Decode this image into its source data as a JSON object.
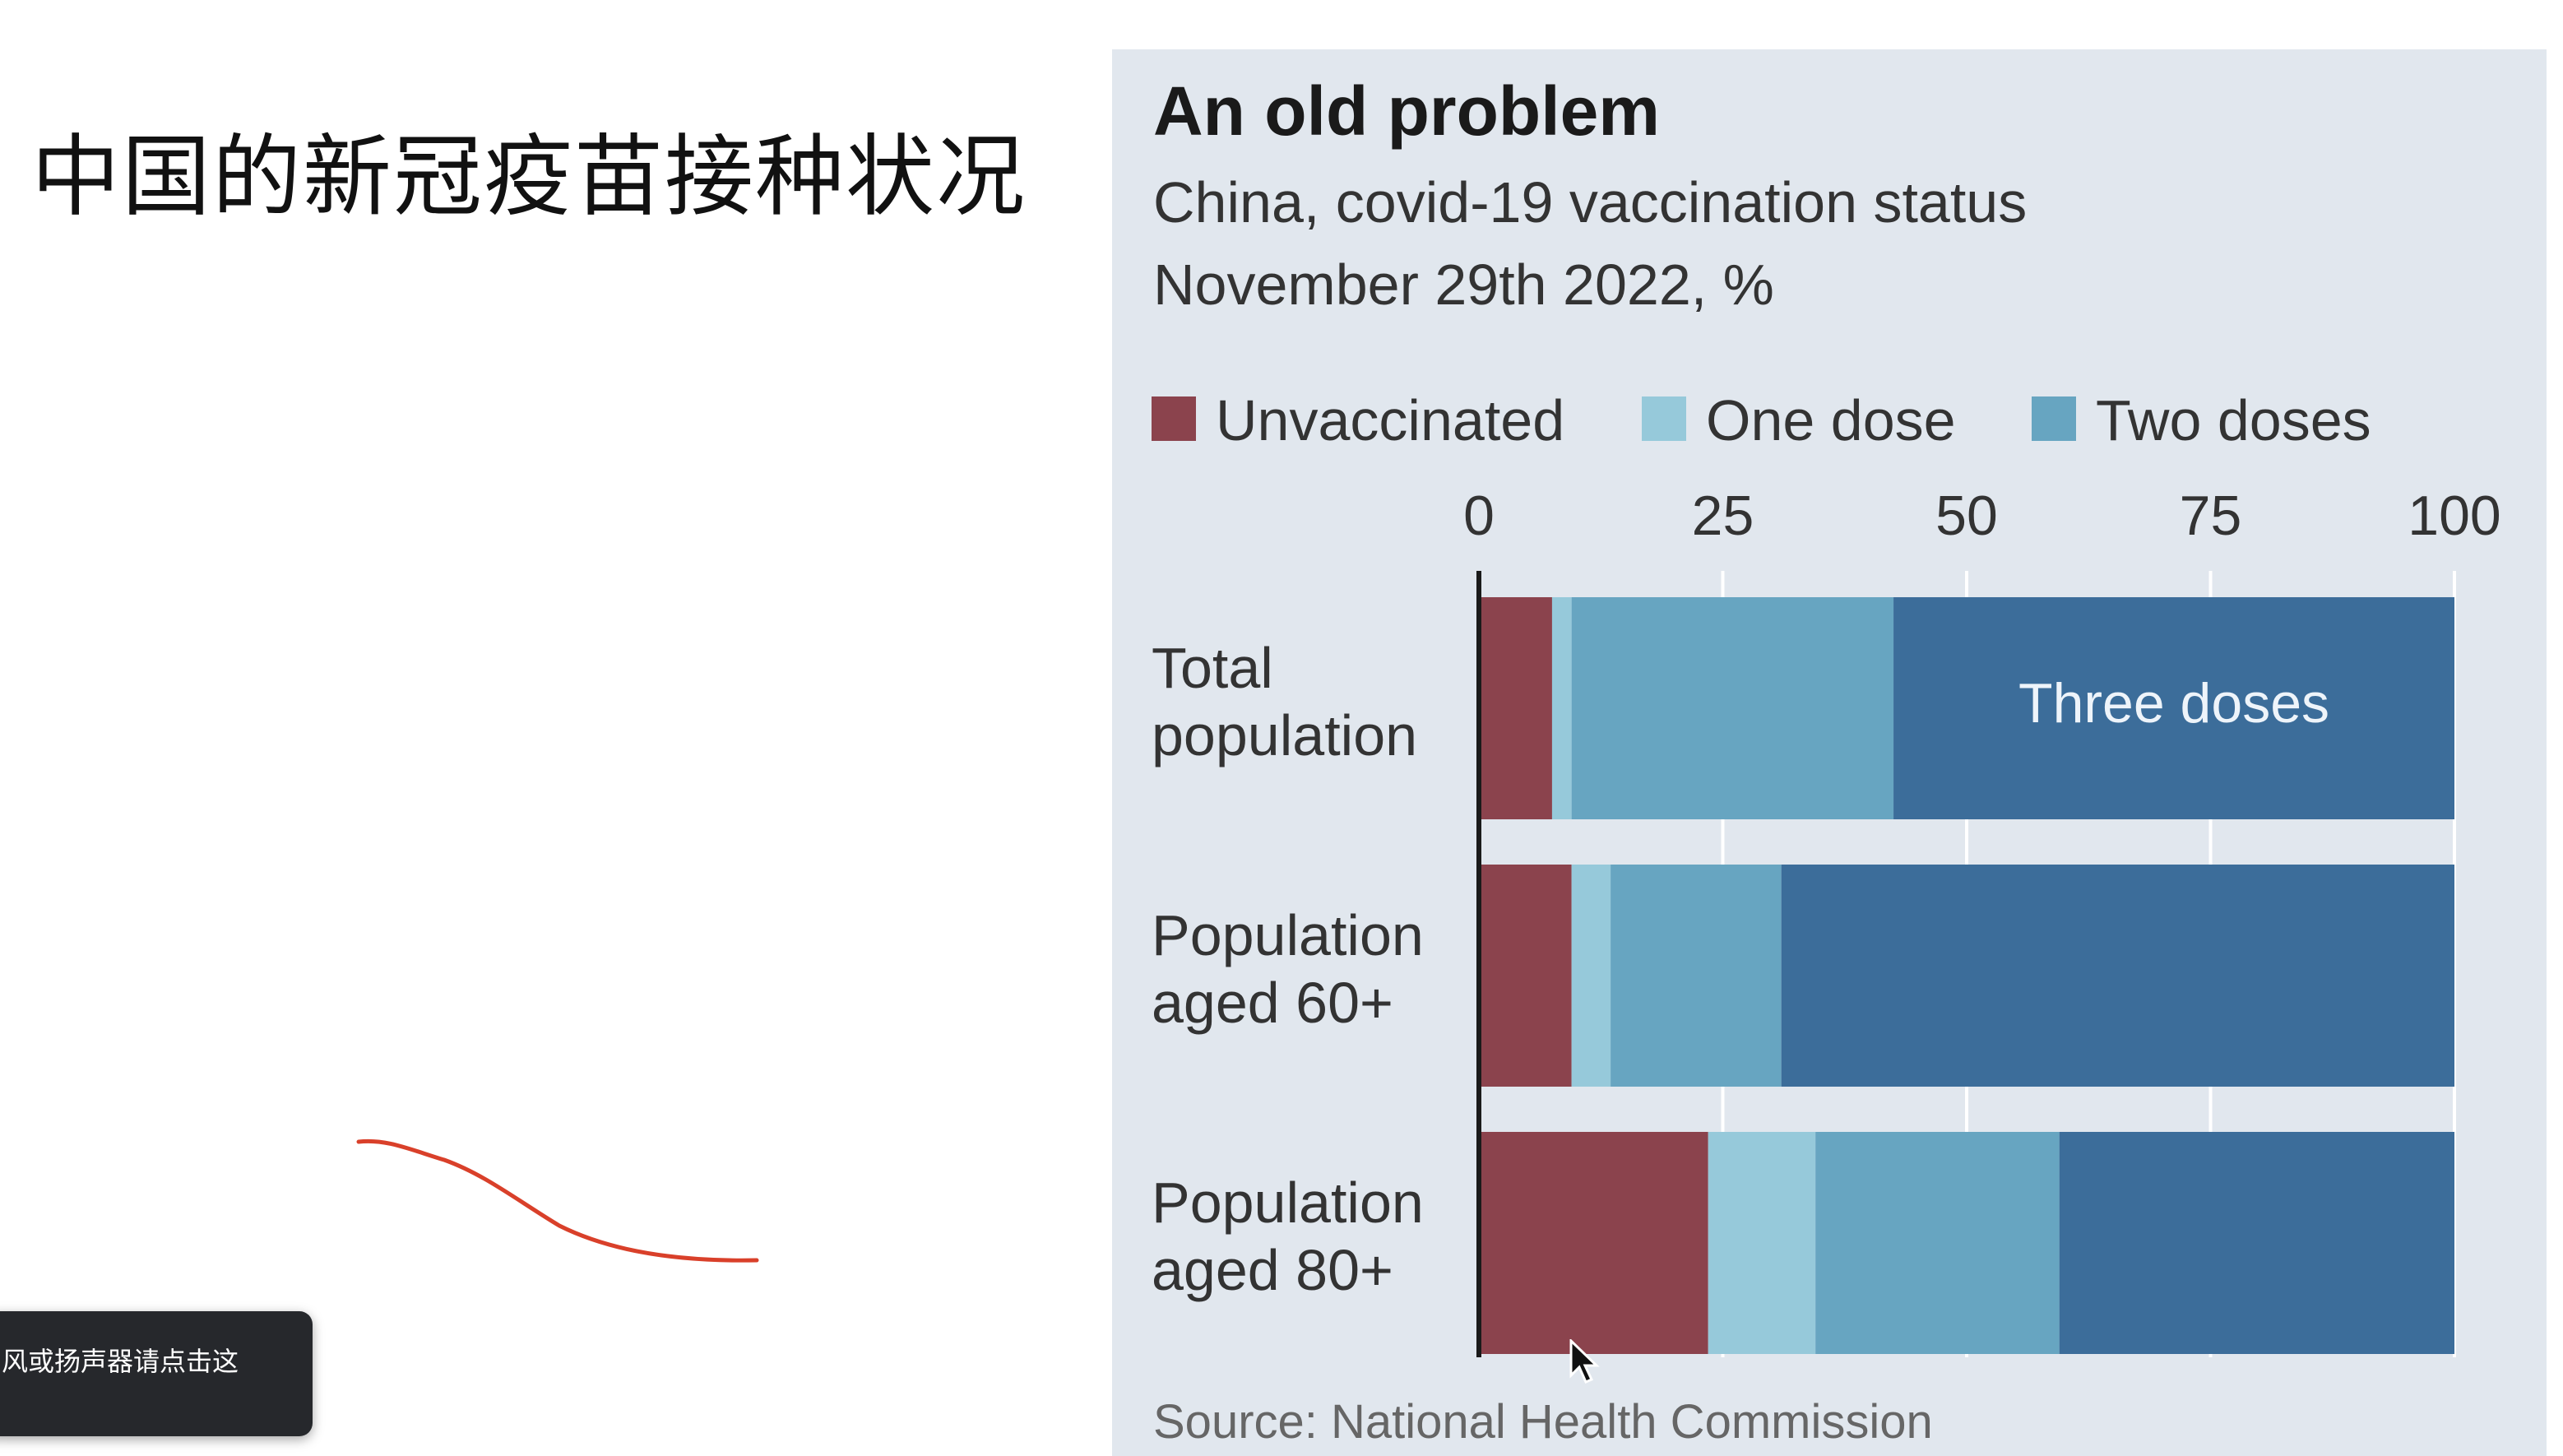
{
  "slide": {
    "title": "中国的新冠疫苗接种状况"
  },
  "toast": {
    "text": "风或扬声器请点击这"
  },
  "chart_data": {
    "type": "bar",
    "orientation": "horizontal",
    "stacked": true,
    "title": "An old problem",
    "subtitle": "China, covid-19 vaccination status",
    "subtitle2": "November 29th 2022, %",
    "source": "Source: National Health Commission",
    "categories": [
      [
        "Total",
        "population"
      ],
      [
        "Population",
        "aged 60+"
      ],
      [
        "Population",
        "aged 80+"
      ]
    ],
    "series": [
      {
        "name": "Unvaccinated",
        "color": "#8b434d",
        "values": [
          7.5,
          9.5,
          23.5
        ]
      },
      {
        "name": "One dose",
        "color": "#96c9da",
        "values": [
          2.0,
          4.0,
          11.0
        ]
      },
      {
        "name": "Two doses",
        "color": "#67a5c1",
        "values": [
          33.0,
          17.5,
          25.0
        ]
      },
      {
        "name": "Three doses",
        "color": "#3c6d9a",
        "values": [
          57.5,
          69.0,
          40.5
        ]
      }
    ],
    "inline_label": "Three doses",
    "xlim": [
      0,
      100
    ],
    "xticks": [
      "0",
      "25",
      "50",
      "75",
      "100"
    ],
    "grid": true,
    "legend_position": "top",
    "legend_items": [
      "Unvaccinated",
      "One dose",
      "Two doses"
    ],
    "colors": {
      "background": "#e1e7ee",
      "grid": "#ffffff",
      "axis": "#1a1a1a"
    }
  }
}
